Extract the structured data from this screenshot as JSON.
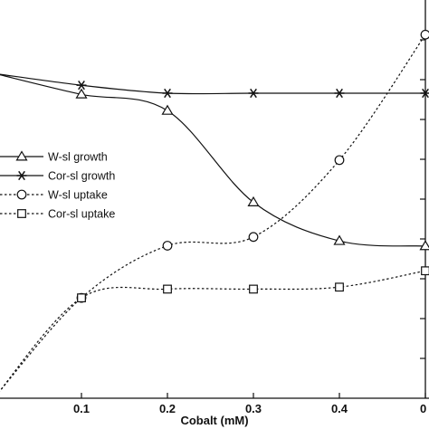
{
  "chart_data": {
    "type": "line",
    "xlabel": "Cobalt (mM)",
    "x": [
      0,
      0.1,
      0.2,
      0.3,
      0.4,
      0.5
    ],
    "x_ticks": [
      "0.1",
      "0.2",
      "0.3",
      "0.4",
      "0"
    ],
    "xlim": [
      0,
      0.5
    ],
    "ylim": [
      0,
      100
    ],
    "grid": false,
    "legend_position": "left",
    "series": [
      {
        "name": "W-sl growth",
        "marker": "triangle",
        "line": "solid",
        "values": [
          81.5,
          76.3,
          72.2,
          49.2,
          39.5,
          38.2
        ]
      },
      {
        "name": "Cor-sl growth",
        "marker": "star",
        "line": "solid",
        "values": [
          81.5,
          78.6,
          76.6,
          76.6,
          76.6,
          76.6
        ]
      },
      {
        "name": "W-sl uptake",
        "marker": "circle",
        "line": "dotted",
        "values": [
          0.5,
          25.2,
          38.3,
          40.5,
          59.8,
          91.3
        ]
      },
      {
        "name": "Cor-sl uptake",
        "marker": "square",
        "line": "dotted",
        "values": [
          0.5,
          25.2,
          27.4,
          27.4,
          27.9,
          32.0
        ]
      }
    ]
  }
}
